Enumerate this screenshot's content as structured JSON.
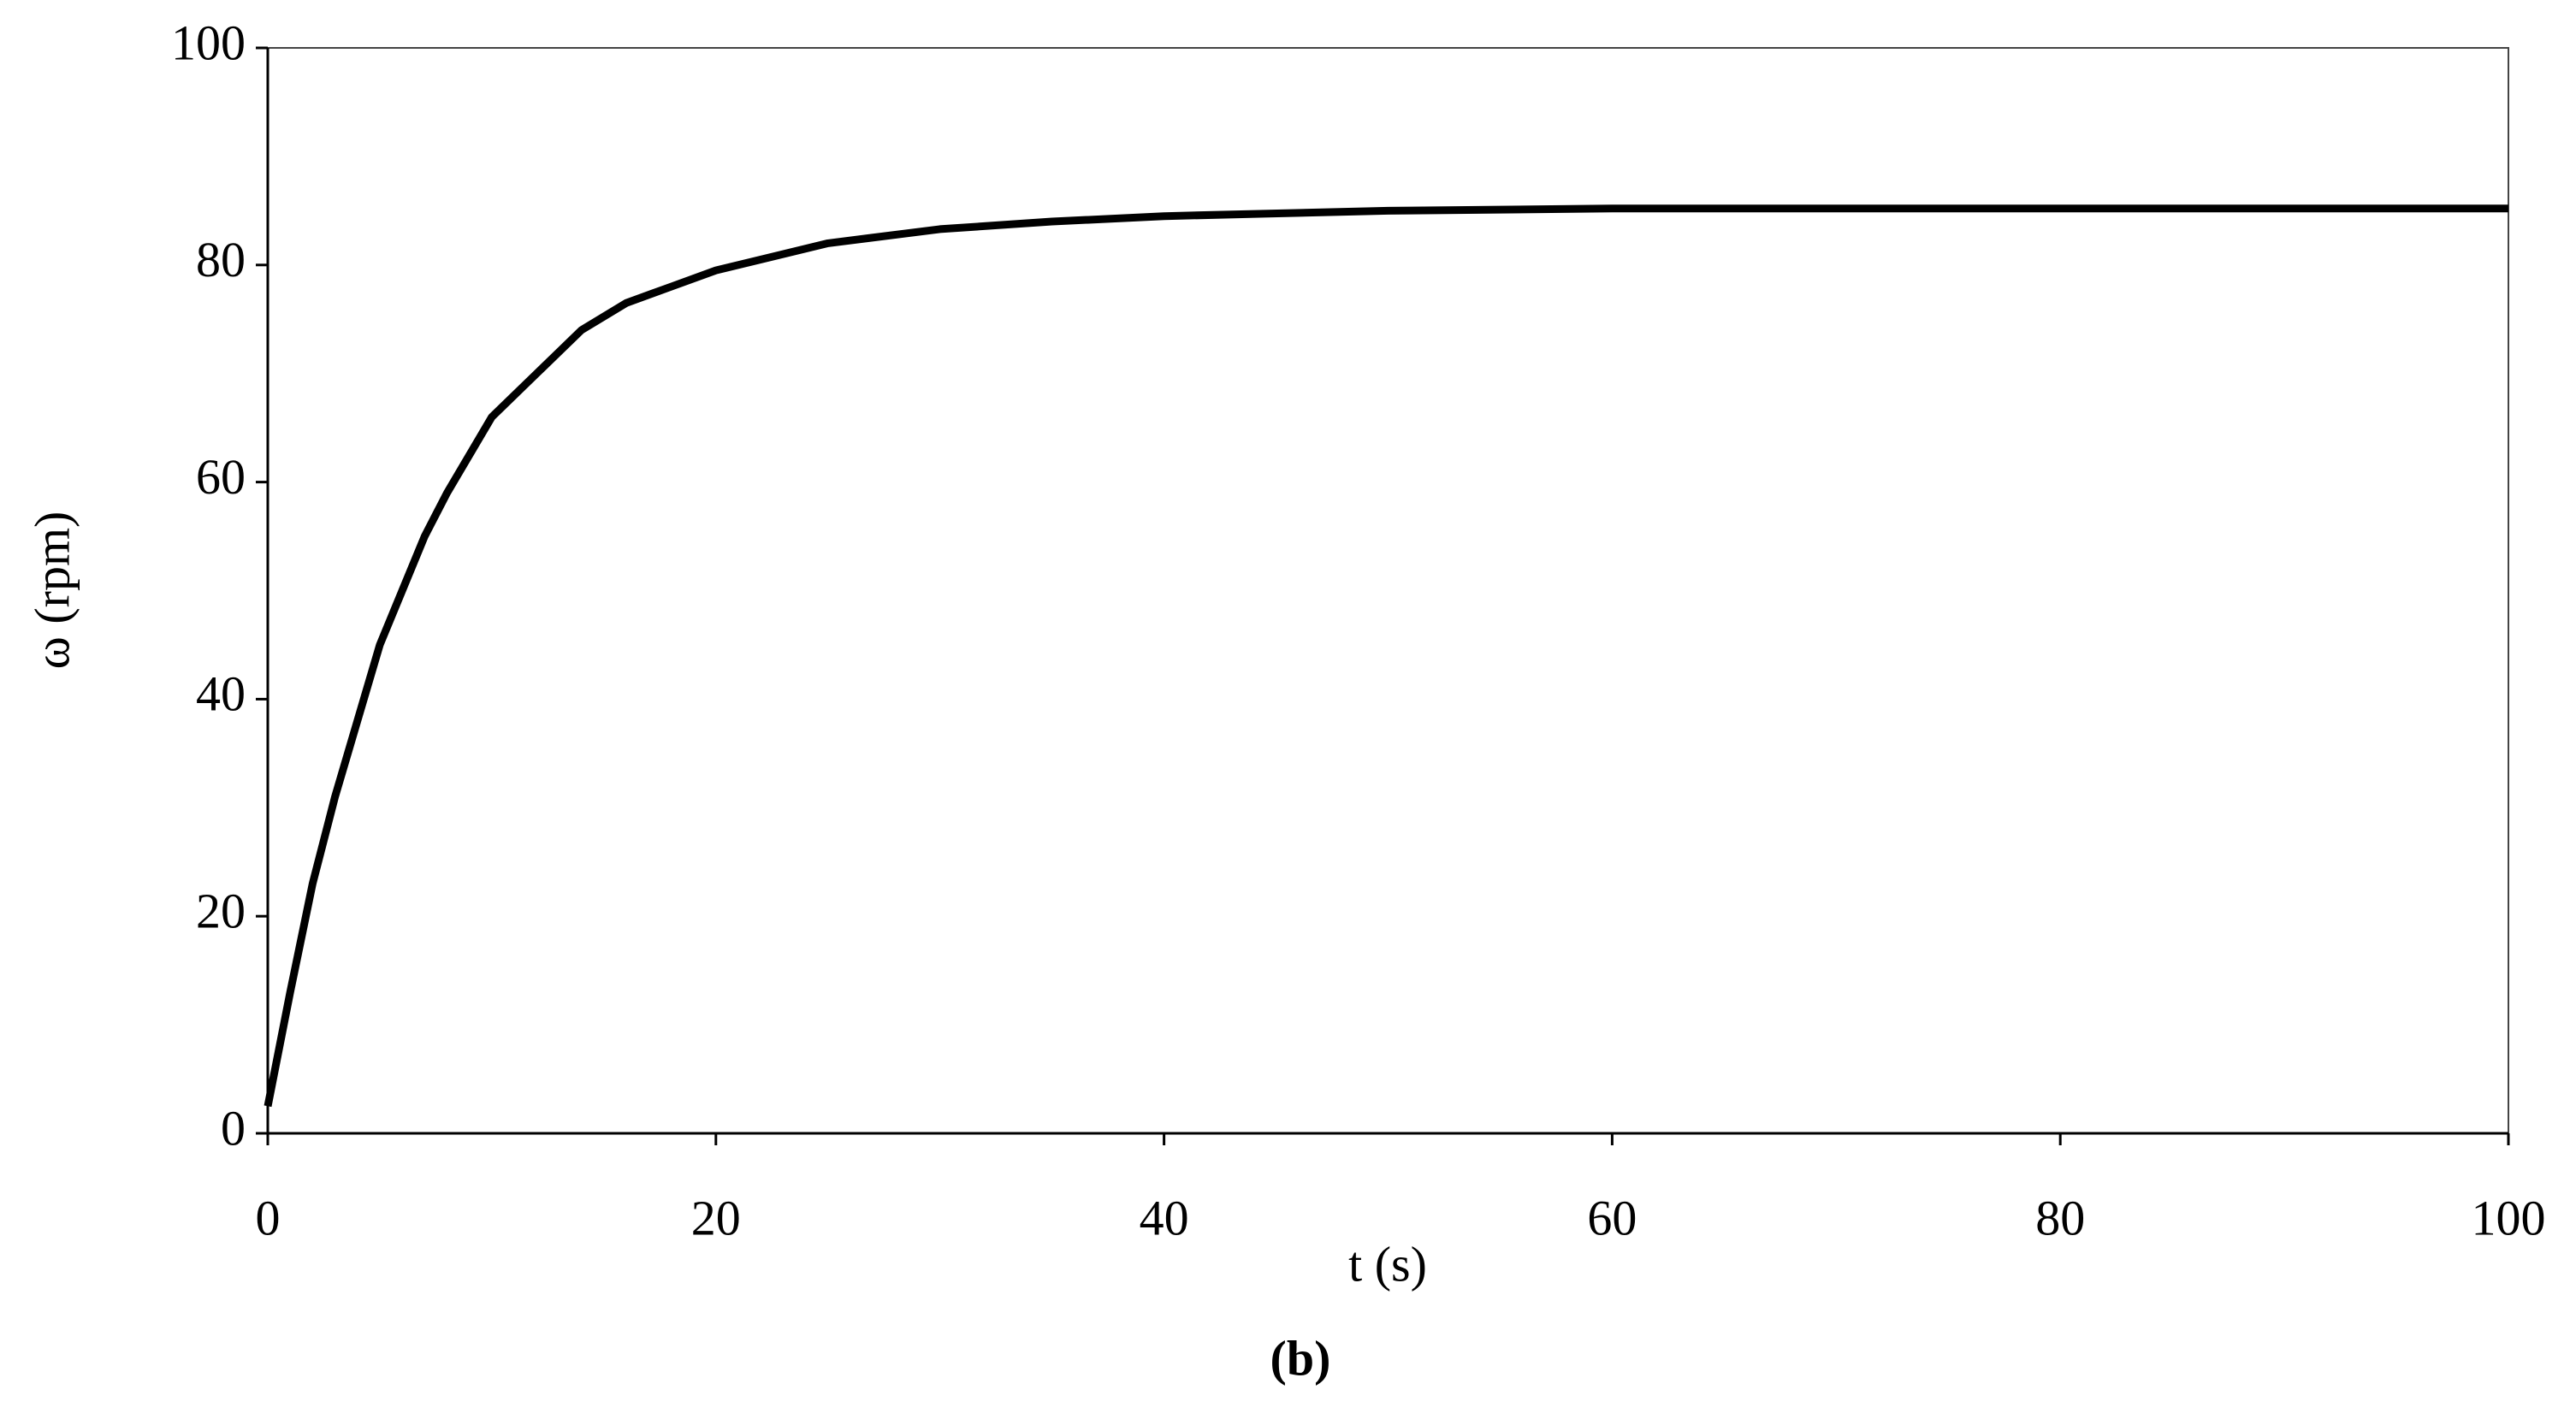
{
  "chart_data": {
    "type": "line",
    "x_label": "t (s)",
    "y_label": "ω (rpm)",
    "caption": "(b)",
    "x": [
      0,
      1,
      2,
      3,
      4,
      5,
      6,
      7,
      8,
      10,
      12,
      14,
      16,
      18,
      20,
      25,
      30,
      35,
      40,
      50,
      60,
      80,
      100
    ],
    "values": [
      2.5,
      13,
      23,
      31,
      38,
      45,
      50,
      55,
      59,
      66,
      70,
      74,
      76.5,
      78,
      79.5,
      82,
      83.3,
      84,
      84.5,
      85,
      85.2,
      85.2,
      85.2
    ],
    "color": "#000000",
    "xlim": [
      0,
      100
    ],
    "xticks": [
      0,
      20,
      40,
      60,
      80,
      100
    ],
    "ylim": [
      0,
      100
    ],
    "yticks": [
      0,
      20,
      40,
      60,
      80,
      100
    ],
    "grid": false
  }
}
